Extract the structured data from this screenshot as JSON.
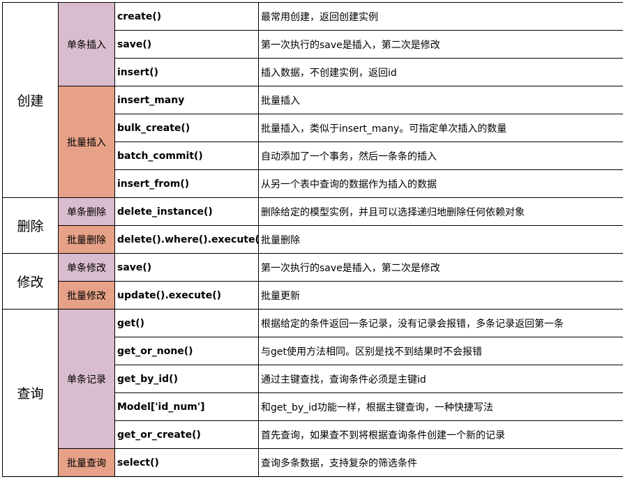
{
  "colors": {
    "single": "#d9bcce",
    "batch": "#e6a188"
  },
  "groups": [
    {
      "category": "创建",
      "subgroups": [
        {
          "label": "单条插入",
          "kind": "single",
          "rows": [
            {
              "method": "create()",
              "desc": "最常用创建，返回创建实例"
            },
            {
              "method": "save()",
              "desc": "第一次执行的save是插入，第二次是修改"
            },
            {
              "method": "insert()",
              "desc": "插入数据，不创建实例，返回id"
            }
          ]
        },
        {
          "label": "批量插入",
          "kind": "batch",
          "rows": [
            {
              "method": "insert_many",
              "desc": "批量插入"
            },
            {
              "method": "bulk_create()",
              "desc": "批量插入，类似于insert_many。可指定单次插入的数量"
            },
            {
              "method": "batch_commit()",
              "desc": "自动添加了一个事务，然后一条条的插入"
            },
            {
              "method": "insert_from()",
              "desc": "从另一个表中查询的数据作为插入的数据"
            }
          ]
        }
      ]
    },
    {
      "category": "删除",
      "subgroups": [
        {
          "label": "单条删除",
          "kind": "single",
          "rows": [
            {
              "method": "delete_instance()",
              "desc": "删除给定的模型实例，并且可以选择递归地删除任何依赖对象"
            }
          ]
        },
        {
          "label": "批量删除",
          "kind": "batch",
          "rows": [
            {
              "method": "delete().where().execute()",
              "desc": "批量删除"
            }
          ]
        }
      ]
    },
    {
      "category": "修改",
      "subgroups": [
        {
          "label": "单条修改",
          "kind": "single",
          "rows": [
            {
              "method": "save()",
              "desc": "第一次执行的save是插入，第二次是修改"
            }
          ]
        },
        {
          "label": "批量修改",
          "kind": "batch",
          "rows": [
            {
              "method": "update().execute()",
              "desc": "批量更新"
            }
          ]
        }
      ]
    },
    {
      "category": "查询",
      "subgroups": [
        {
          "label": "单条记录",
          "kind": "single",
          "rows": [
            {
              "method": "get()",
              "desc": "根据给定的条件返回一条记录，没有记录会报错，多条记录返回第一条"
            },
            {
              "method": "get_or_none()",
              "desc": "与get使用方法相同。区别是找不到结果时不会报错"
            },
            {
              "method": "get_by_id()",
              "desc": "通过主键查找，查询条件必须是主键id"
            },
            {
              "method": "Model['id_num']",
              "desc": "和get_by_id功能一样，根据主键查询，一种快捷写法"
            },
            {
              "method": "get_or_create()",
              "desc": "首先查询，如果查不到将根据查询条件创建一个新的记录"
            }
          ]
        },
        {
          "label": "批量查询",
          "kind": "batch",
          "rows": [
            {
              "method": "select()",
              "desc": "查询多条数据，支持复杂的筛选条件"
            }
          ]
        }
      ]
    }
  ]
}
